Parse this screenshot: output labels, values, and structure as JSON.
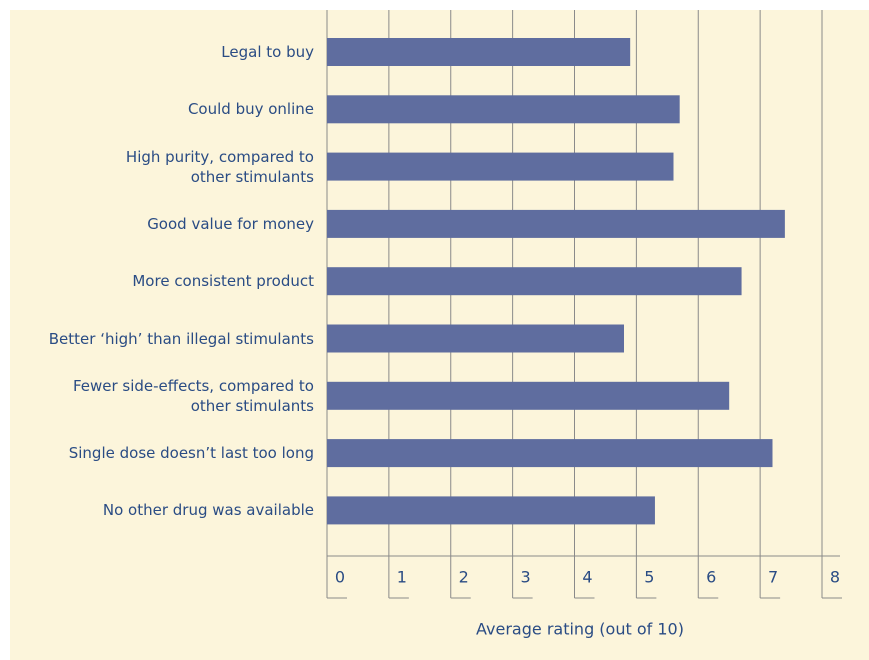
{
  "chart_data": {
    "type": "barh",
    "categories": [
      "Legal to buy",
      "Could buy online",
      "High purity, compared to\nother stimulants",
      "Good value for money",
      "More consistent product",
      "Better ‘high’ than illegal stimulants",
      "Fewer side-effects, compared to\nother stimulants",
      "Single dose doesn’t last too long",
      "No other drug was available"
    ],
    "values": [
      4.9,
      5.7,
      5.6,
      7.4,
      6.7,
      4.8,
      6.5,
      7.2,
      5.3
    ],
    "color": "#5f6d9f",
    "xlabel": "Average rating (out of 10)",
    "xlim": [
      0,
      8
    ],
    "xticks": [
      0,
      1,
      2,
      3,
      4,
      5,
      6,
      7,
      8
    ],
    "grid": true
  }
}
